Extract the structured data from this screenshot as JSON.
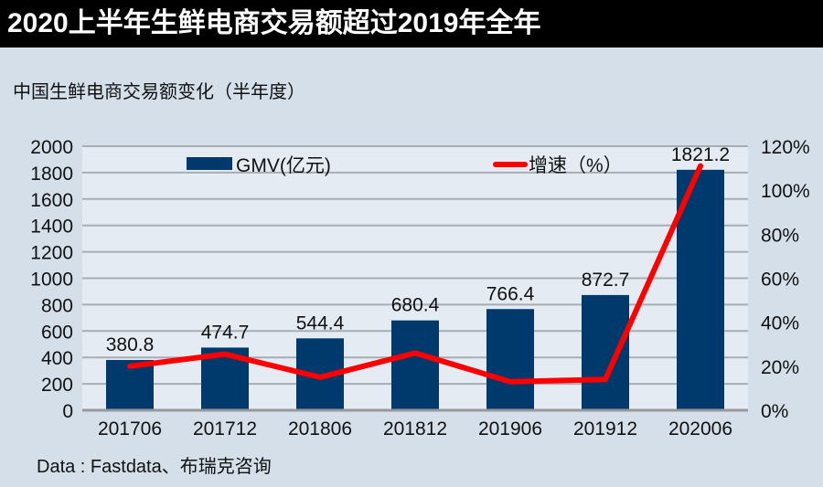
{
  "header": {
    "title": "2020上半年生鲜电商交易额超过2019年全年"
  },
  "subtitle": "中国生鲜电商交易额变化（半年度）",
  "source": "Data : Fastdata、布瑞克咨询",
  "chart_data": {
    "type": "bar+line",
    "categories": [
      "201706",
      "201712",
      "201806",
      "201812",
      "201906",
      "201912",
      "202006"
    ],
    "series": [
      {
        "name": "GMV(亿元)",
        "type": "bar",
        "axis": "left",
        "color": "#003a6c",
        "values": [
          380.8,
          474.7,
          544.4,
          680.4,
          766.4,
          872.7,
          1821.2
        ],
        "labels": [
          "380.8",
          "474.7",
          "544.4",
          "680.4",
          "766.4",
          "872.7",
          "1821.2"
        ]
      },
      {
        "name": "增速（%）",
        "type": "line",
        "axis": "right",
        "color": "#ff0000",
        "values": [
          20,
          25.5,
          15,
          26,
          13,
          14,
          111
        ]
      }
    ],
    "ylim_left": [
      0,
      2000
    ],
    "yticks_left": [
      "0",
      "200",
      "400",
      "600",
      "800",
      "1000",
      "1200",
      "1400",
      "1600",
      "1800",
      "2000"
    ],
    "ylim_right": [
      0,
      120
    ],
    "yticks_right": [
      "0%",
      "20%",
      "40%",
      "60%",
      "80%",
      "100%",
      "120%"
    ],
    "grid": true,
    "legend": "top"
  }
}
